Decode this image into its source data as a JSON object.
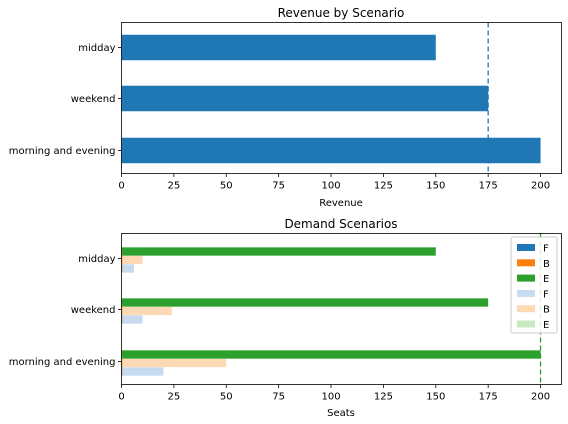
{
  "chart_data": [
    {
      "type": "bar",
      "orientation": "horizontal",
      "title": "Revenue by Scenario",
      "xlabel": "Revenue",
      "ylabel": "",
      "categories": [
        "morning and evening",
        "weekend",
        "midday"
      ],
      "values": [
        200,
        175,
        150
      ],
      "xlim": [
        0,
        210
      ],
      "xticks": [
        0,
        25,
        50,
        75,
        100,
        125,
        150,
        175,
        200
      ],
      "reference_line": {
        "x": 175,
        "style": "dashed",
        "color": "#1f77b4"
      },
      "color": "#1f77b4",
      "grid": false
    },
    {
      "type": "bar",
      "orientation": "horizontal",
      "title": "Demand Scenarios",
      "xlabel": "Seats",
      "ylabel": "",
      "categories": [
        "morning and evening",
        "weekend",
        "midday"
      ],
      "xlim": [
        0,
        210
      ],
      "xticks": [
        0,
        25,
        50,
        75,
        100,
        125,
        150,
        175,
        200
      ],
      "series": [
        {
          "name": "F",
          "values": [
            20,
            10,
            6
          ],
          "color": "#c6dbef"
        },
        {
          "name": "B",
          "values": [
            50,
            24,
            10
          ],
          "color": "#fdd9b5"
        },
        {
          "name": "E",
          "values": [
            200,
            175,
            150
          ],
          "color": "#2ca02c"
        },
        {
          "name": "F",
          "values": [
            0,
            0,
            0
          ],
          "color": "#1f77b4"
        },
        {
          "name": "B",
          "values": [
            0,
            0,
            0
          ],
          "color": "#ff7f0e"
        },
        {
          "name": "E",
          "values": [
            0,
            0,
            0
          ],
          "color": "#c7e9c0"
        }
      ],
      "legend": {
        "position": "top-right",
        "entries": [
          {
            "label": "F",
            "color": "#1f77b4"
          },
          {
            "label": "B",
            "color": "#ff7f0e"
          },
          {
            "label": "E",
            "color": "#2ca02c"
          },
          {
            "label": "F",
            "color": "#c6dbef"
          },
          {
            "label": "B",
            "color": "#fdd9b5"
          },
          {
            "label": "E",
            "color": "#c7e9c0"
          }
        ]
      },
      "reference_line": {
        "x": 200,
        "style": "dashed",
        "color": "#2ca02c"
      },
      "grid": false
    }
  ]
}
